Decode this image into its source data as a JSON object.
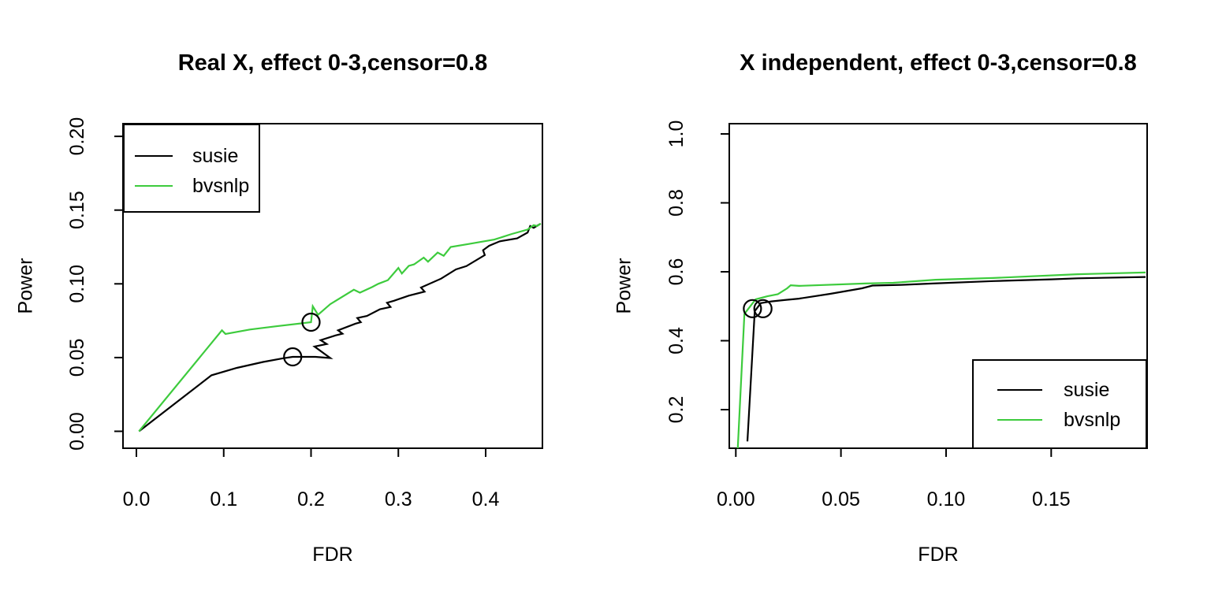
{
  "figure": {
    "background": "#ffffff"
  },
  "colors": {
    "susie": "#000000",
    "bvsnlp": "#3DCB3D",
    "axis": "#000000",
    "marker": "#000000"
  },
  "chart_data": [
    {
      "type": "line",
      "title": "Real X, effect 0-3,censor=0.8",
      "xlabel": "FDR",
      "ylabel": "Power",
      "xlim": [
        -0.015,
        0.465
      ],
      "ylim": [
        -0.012,
        0.209
      ],
      "grid": false,
      "x_ticks": {
        "values": [
          0.0,
          0.1,
          0.2,
          0.3,
          0.4
        ],
        "labels": [
          "0.0",
          "0.1",
          "0.2",
          "0.3",
          "0.4"
        ]
      },
      "y_ticks": {
        "values": [
          0.0,
          0.05,
          0.1,
          0.15,
          0.2
        ],
        "labels": [
          "0.00",
          "0.05",
          "0.10",
          "0.15",
          "0.20"
        ]
      },
      "legend": {
        "position": "top-left",
        "entries": [
          {
            "label": "susie",
            "color_key": "susie"
          },
          {
            "label": "bvsnlp",
            "color_key": "bvsnlp"
          }
        ]
      },
      "series": [
        {
          "name": "susie",
          "color": "#000000",
          "points": [
            [
              0.003,
              0.0
            ],
            [
              0.086,
              0.038
            ],
            [
              0.115,
              0.043
            ],
            [
              0.145,
              0.047
            ],
            [
              0.168,
              0.0495
            ],
            [
              0.179,
              0.0505
            ],
            [
              0.205,
              0.0505
            ],
            [
              0.222,
              0.0497
            ],
            [
              0.204,
              0.0575
            ],
            [
              0.218,
              0.0592
            ],
            [
              0.211,
              0.0618
            ],
            [
              0.228,
              0.065
            ],
            [
              0.236,
              0.0662
            ],
            [
              0.231,
              0.0685
            ],
            [
              0.251,
              0.073
            ],
            [
              0.257,
              0.074
            ],
            [
              0.253,
              0.0768
            ],
            [
              0.264,
              0.0782
            ],
            [
              0.279,
              0.0828
            ],
            [
              0.291,
              0.0843
            ],
            [
              0.287,
              0.0872
            ],
            [
              0.295,
              0.0885
            ],
            [
              0.312,
              0.092
            ],
            [
              0.33,
              0.0947
            ],
            [
              0.326,
              0.0975
            ],
            [
              0.349,
              0.1035
            ],
            [
              0.366,
              0.1098
            ],
            [
              0.378,
              0.112
            ],
            [
              0.399,
              0.1195
            ],
            [
              0.397,
              0.1228
            ],
            [
              0.404,
              0.1258
            ],
            [
              0.416,
              0.1288
            ],
            [
              0.436,
              0.1308
            ],
            [
              0.448,
              0.1348
            ],
            [
              0.451,
              0.1392
            ],
            [
              0.455,
              0.138
            ],
            [
              0.46,
              0.1398
            ],
            [
              0.463,
              0.1408
            ]
          ]
        },
        {
          "name": "bvsnlp",
          "color": "#3DCB3D",
          "points": [
            [
              0.003,
              0.0
            ],
            [
              0.098,
              0.0685
            ],
            [
              0.102,
              0.066
            ],
            [
              0.13,
              0.069
            ],
            [
              0.16,
              0.0712
            ],
            [
              0.19,
              0.0733
            ],
            [
              0.2,
              0.074
            ],
            [
              0.202,
              0.0848
            ],
            [
              0.208,
              0.079
            ],
            [
              0.222,
              0.0862
            ],
            [
              0.249,
              0.096
            ],
            [
              0.256,
              0.094
            ],
            [
              0.27,
              0.0978
            ],
            [
              0.277,
              0.1
            ],
            [
              0.288,
              0.1025
            ],
            [
              0.3,
              0.1108
            ],
            [
              0.304,
              0.107
            ],
            [
              0.312,
              0.1122
            ],
            [
              0.318,
              0.1132
            ],
            [
              0.329,
              0.1178
            ],
            [
              0.334,
              0.115
            ],
            [
              0.345,
              0.1212
            ],
            [
              0.352,
              0.119
            ],
            [
              0.36,
              0.125
            ],
            [
              0.38,
              0.127
            ],
            [
              0.41,
              0.13
            ],
            [
              0.43,
              0.1338
            ],
            [
              0.448,
              0.1368
            ],
            [
              0.455,
              0.1398
            ],
            [
              0.459,
              0.1392
            ],
            [
              0.463,
              0.1408
            ]
          ]
        }
      ],
      "markers": [
        {
          "series": "susie",
          "point": [
            0.179,
            0.0505
          ]
        },
        {
          "series": "bvsnlp",
          "point": [
            0.2,
            0.074
          ]
        }
      ]
    },
    {
      "type": "line",
      "title": "X independent, effect 0-3,censor=0.8",
      "xlabel": "FDR",
      "ylabel": "Power",
      "xlim": [
        -0.003,
        0.196
      ],
      "ylim": [
        0.088,
        1.03
      ],
      "grid": false,
      "x_ticks": {
        "values": [
          0.0,
          0.05,
          0.1,
          0.15
        ],
        "labels": [
          "0.00",
          "0.05",
          "0.10",
          "0.15"
        ]
      },
      "y_ticks": {
        "values": [
          0.2,
          0.4,
          0.6,
          0.8,
          1.0
        ],
        "labels": [
          "0.2",
          "0.4",
          "0.6",
          "0.8",
          "1.0"
        ]
      },
      "legend": {
        "position": "bottom-right",
        "entries": [
          {
            "label": "susie",
            "color_key": "susie"
          },
          {
            "label": "bvsnlp",
            "color_key": "bvsnlp"
          }
        ]
      },
      "series": [
        {
          "name": "susie",
          "color": "#000000",
          "points": [
            [
              0.0055,
              0.108
            ],
            [
              0.009,
              0.486
            ],
            [
              0.0119,
              0.509
            ],
            [
              0.0169,
              0.514
            ],
            [
              0.0231,
              0.518
            ],
            [
              0.03,
              0.522
            ],
            [
              0.0449,
              0.536
            ],
            [
              0.06,
              0.552
            ],
            [
              0.065,
              0.56
            ],
            [
              0.0786,
              0.562
            ],
            [
              0.0936,
              0.566
            ],
            [
              0.1225,
              0.573
            ],
            [
              0.15,
              0.578
            ],
            [
              0.1625,
              0.581
            ],
            [
              0.1949,
              0.585
            ]
          ]
        },
        {
          "name": "bvsnlp",
          "color": "#3DCB3D",
          "points": [
            [
              0.0009,
              0.085
            ],
            [
              0.0041,
              0.478
            ],
            [
              0.0094,
              0.52
            ],
            [
              0.015,
              0.529
            ],
            [
              0.02,
              0.535
            ],
            [
              0.0244,
              0.552
            ],
            [
              0.0261,
              0.561
            ],
            [
              0.03,
              0.559
            ],
            [
              0.0613,
              0.566
            ],
            [
              0.0749,
              0.568
            ],
            [
              0.095,
              0.577
            ],
            [
              0.1225,
              0.582
            ],
            [
              0.1625,
              0.593
            ],
            [
              0.1949,
              0.598
            ]
          ]
        }
      ],
      "markers": [
        {
          "series": "bvsnlp",
          "point": [
            0.0079,
            0.493
          ]
        },
        {
          "series": "susie",
          "point": [
            0.0129,
            0.493
          ]
        }
      ]
    }
  ]
}
